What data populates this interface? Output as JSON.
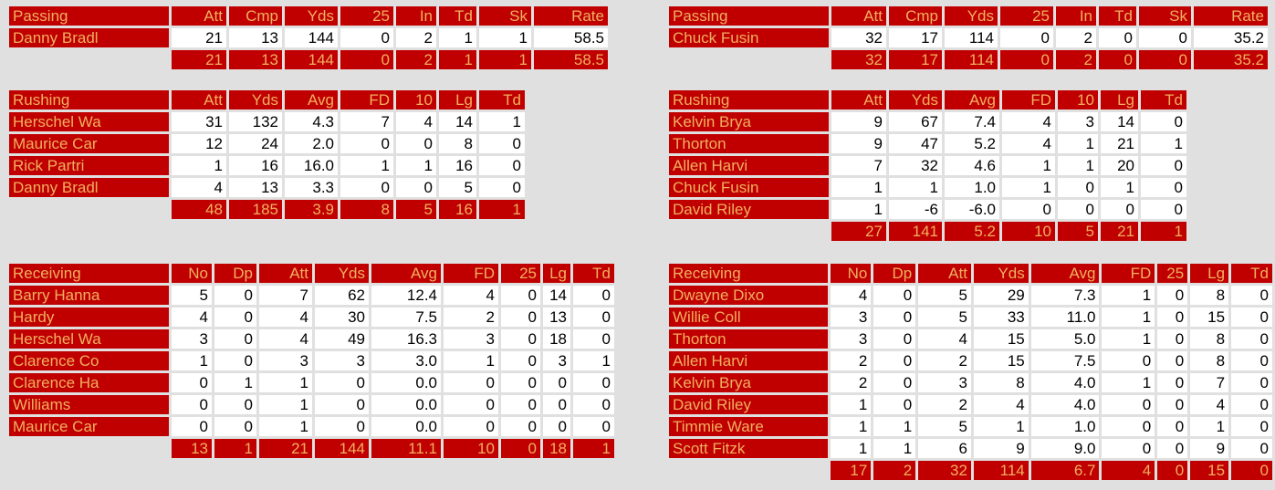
{
  "colors": {
    "header_bg": "#c00000",
    "header_text": "#f0b060",
    "cell_bg": "#ffffff",
    "page_bg": "#e0e0e0"
  },
  "tables": [
    {
      "id": "left-passing",
      "title": "Passing",
      "columns": [
        "Att",
        "Cmp",
        "Yds",
        "25",
        "In",
        "Td",
        "Sk",
        "Rate"
      ],
      "rows": [
        {
          "name": "Danny Bradl",
          "values": [
            "21",
            "13",
            "144",
            "0",
            "2",
            "1",
            "1",
            "58.5"
          ]
        }
      ],
      "totals": [
        "21",
        "13",
        "144",
        "0",
        "2",
        "1",
        "1",
        "58.5"
      ]
    },
    {
      "id": "right-passing",
      "title": "Passing",
      "columns": [
        "Att",
        "Cmp",
        "Yds",
        "25",
        "In",
        "Td",
        "Sk",
        "Rate"
      ],
      "rows": [
        {
          "name": "Chuck Fusin",
          "values": [
            "32",
            "17",
            "114",
            "0",
            "2",
            "0",
            "0",
            "35.2"
          ]
        }
      ],
      "totals": [
        "32",
        "17",
        "114",
        "0",
        "2",
        "0",
        "0",
        "35.2"
      ]
    },
    {
      "id": "left-rushing",
      "title": "Rushing",
      "columns": [
        "Att",
        "Yds",
        "Avg",
        "FD",
        "10",
        "Lg",
        "Td"
      ],
      "rows": [
        {
          "name": "Herschel Wa",
          "values": [
            "31",
            "132",
            "4.3",
            "7",
            "4",
            "14",
            "1"
          ]
        },
        {
          "name": "Maurice Car",
          "values": [
            "12",
            "24",
            "2.0",
            "0",
            "0",
            "8",
            "0"
          ]
        },
        {
          "name": "Rick Partri",
          "values": [
            "1",
            "16",
            "16.0",
            "1",
            "1",
            "16",
            "0"
          ]
        },
        {
          "name": "Danny Bradl",
          "values": [
            "4",
            "13",
            "3.3",
            "0",
            "0",
            "5",
            "0"
          ]
        }
      ],
      "totals": [
        "48",
        "185",
        "3.9",
        "8",
        "5",
        "16",
        "1"
      ]
    },
    {
      "id": "right-rushing",
      "title": "Rushing",
      "columns": [
        "Att",
        "Yds",
        "Avg",
        "FD",
        "10",
        "Lg",
        "Td"
      ],
      "rows": [
        {
          "name": "Kelvin Brya",
          "values": [
            "9",
            "67",
            "7.4",
            "4",
            "3",
            "14",
            "0"
          ]
        },
        {
          "name": "Thorton",
          "values": [
            "9",
            "47",
            "5.2",
            "4",
            "1",
            "21",
            "1"
          ]
        },
        {
          "name": "Allen Harvi",
          "values": [
            "7",
            "32",
            "4.6",
            "1",
            "1",
            "20",
            "0"
          ]
        },
        {
          "name": "Chuck Fusin",
          "values": [
            "1",
            "1",
            "1.0",
            "1",
            "0",
            "1",
            "0"
          ]
        },
        {
          "name": "David Riley",
          "values": [
            "1",
            "-6",
            "-6.0",
            "0",
            "0",
            "0",
            "0"
          ]
        }
      ],
      "totals": [
        "27",
        "141",
        "5.2",
        "10",
        "5",
        "21",
        "1"
      ]
    },
    {
      "id": "left-receiving",
      "title": "Receiving",
      "columns": [
        "No",
        "Dp",
        "Att",
        "Yds",
        "Avg",
        "FD",
        "25",
        "Lg",
        "Td"
      ],
      "rows": [
        {
          "name": "Barry Hanna",
          "values": [
            "5",
            "0",
            "7",
            "62",
            "12.4",
            "4",
            "0",
            "14",
            "0"
          ]
        },
        {
          "name": "Hardy",
          "values": [
            "4",
            "0",
            "4",
            "30",
            "7.5",
            "2",
            "0",
            "13",
            "0"
          ]
        },
        {
          "name": "Herschel Wa",
          "values": [
            "3",
            "0",
            "4",
            "49",
            "16.3",
            "3",
            "0",
            "18",
            "0"
          ]
        },
        {
          "name": "Clarence Co",
          "values": [
            "1",
            "0",
            "3",
            "3",
            "3.0",
            "1",
            "0",
            "3",
            "1"
          ]
        },
        {
          "name": "Clarence Ha",
          "values": [
            "0",
            "1",
            "1",
            "0",
            "0.0",
            "0",
            "0",
            "0",
            "0"
          ]
        },
        {
          "name": "Williams",
          "values": [
            "0",
            "0",
            "1",
            "0",
            "0.0",
            "0",
            "0",
            "0",
            "0"
          ]
        },
        {
          "name": "Maurice Car",
          "values": [
            "0",
            "0",
            "1",
            "0",
            "0.0",
            "0",
            "0",
            "0",
            "0"
          ]
        }
      ],
      "totals": [
        "13",
        "1",
        "21",
        "144",
        "11.1",
        "10",
        "0",
        "18",
        "1"
      ]
    },
    {
      "id": "right-receiving",
      "title": "Receiving",
      "columns": [
        "No",
        "Dp",
        "Att",
        "Yds",
        "Avg",
        "FD",
        "25",
        "Lg",
        "Td"
      ],
      "rows": [
        {
          "name": "Dwayne Dixo",
          "values": [
            "4",
            "0",
            "5",
            "29",
            "7.3",
            "1",
            "0",
            "8",
            "0"
          ]
        },
        {
          "name": "Willie Coll",
          "values": [
            "3",
            "0",
            "5",
            "33",
            "11.0",
            "1",
            "0",
            "15",
            "0"
          ]
        },
        {
          "name": "Thorton",
          "values": [
            "3",
            "0",
            "4",
            "15",
            "5.0",
            "1",
            "0",
            "8",
            "0"
          ]
        },
        {
          "name": "Allen Harvi",
          "values": [
            "2",
            "0",
            "2",
            "15",
            "7.5",
            "0",
            "0",
            "8",
            "0"
          ]
        },
        {
          "name": "Kelvin Brya",
          "values": [
            "2",
            "0",
            "3",
            "8",
            "4.0",
            "1",
            "0",
            "7",
            "0"
          ]
        },
        {
          "name": "David Riley",
          "values": [
            "1",
            "0",
            "2",
            "4",
            "4.0",
            "0",
            "0",
            "4",
            "0"
          ]
        },
        {
          "name": "Timmie Ware",
          "values": [
            "1",
            "1",
            "5",
            "1",
            "1.0",
            "0",
            "0",
            "1",
            "0"
          ]
        },
        {
          "name": "Scott Fitzk",
          "values": [
            "1",
            "1",
            "6",
            "9",
            "9.0",
            "0",
            "0",
            "9",
            "0"
          ]
        }
      ],
      "totals": [
        "17",
        "2",
        "32",
        "114",
        "6.7",
        "4",
        "0",
        "15",
        "0"
      ]
    }
  ]
}
